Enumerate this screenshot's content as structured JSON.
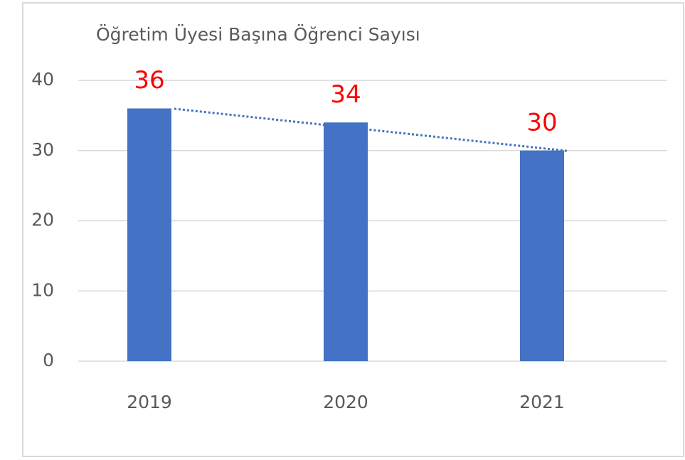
{
  "chart_data": {
    "type": "bar",
    "title": "Öğretim Üyesi Başına Öğrenci Sayısı",
    "categories": [
      "2019",
      "2020",
      "2021"
    ],
    "values": [
      36,
      34,
      30
    ],
    "color": "#4472c4",
    "label_color": "#ff0000",
    "trendline": true,
    "ylim": [
      0,
      40
    ],
    "yticks": [
      0,
      10,
      20,
      30,
      40
    ],
    "grid": true
  }
}
